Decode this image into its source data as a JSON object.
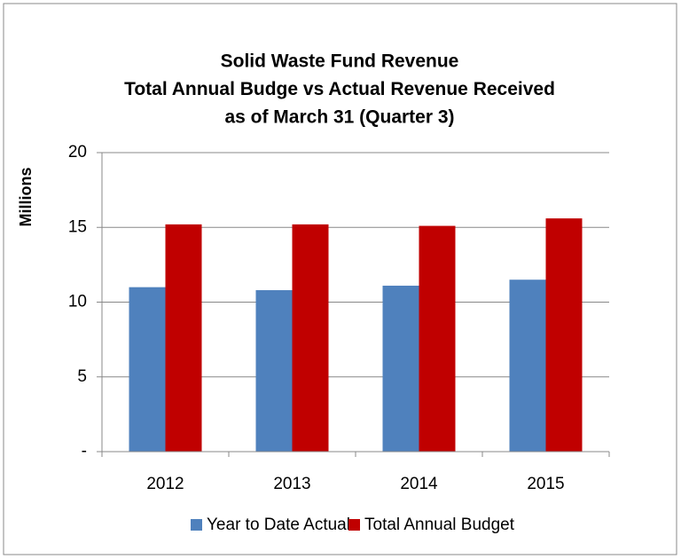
{
  "chart_data": {
    "type": "bar",
    "title": [
      "Solid Waste Fund Revenue",
      "Total Annual Budge vs Actual Revenue Received",
      "as of March 31 (Quarter 3)"
    ],
    "y_label": "Millions",
    "categories": [
      "2012",
      "2013",
      "2014",
      "2015"
    ],
    "series": [
      {
        "name": "Year to Date Actual",
        "color": "#4f81bd",
        "values": [
          11.0,
          10.8,
          11.1,
          11.5
        ]
      },
      {
        "name": "Total Annual Budget",
        "color": "#c00000",
        "values": [
          15.2,
          15.2,
          15.1,
          15.6
        ]
      }
    ],
    "ylim": [
      0,
      20
    ],
    "yticks": [
      {
        "value": 0,
        "label": "-"
      },
      5,
      10,
      15,
      20
    ],
    "grid": true,
    "legend": "bottom"
  }
}
